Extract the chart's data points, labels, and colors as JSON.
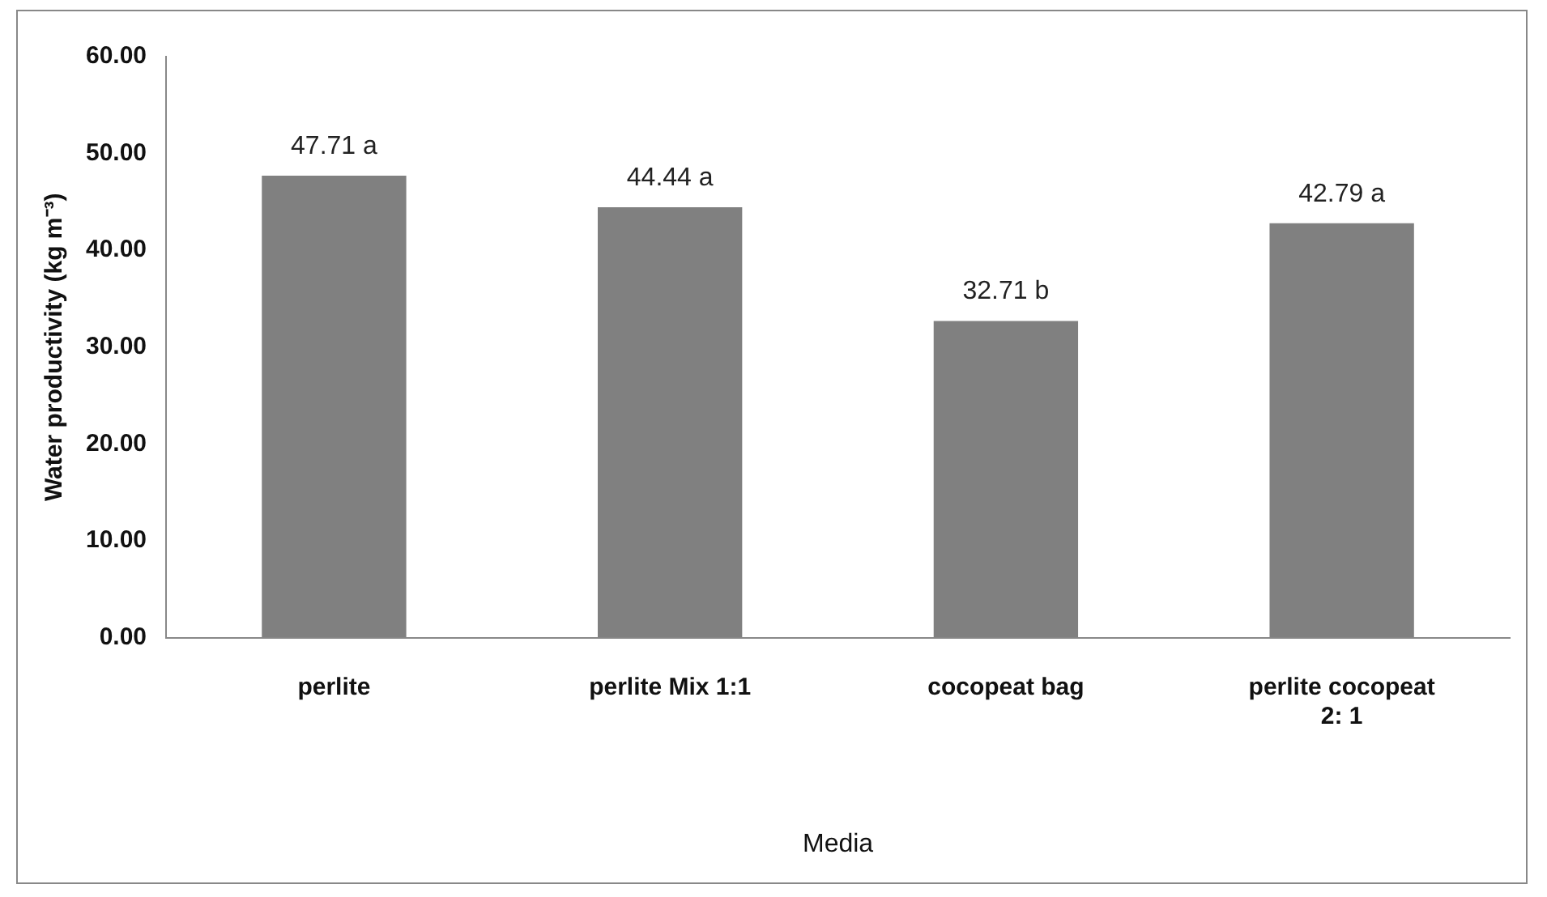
{
  "chart_data": {
    "type": "bar",
    "xlabel": "Media",
    "ylabel": "Water productivity (kg m⁻³)",
    "categories": [
      "perlite",
      "perlite Mix 1:1",
      "cocopeat bag",
      "perlite cocopeat 2: 1"
    ],
    "values": [
      47.71,
      44.44,
      32.71,
      42.79
    ],
    "color": "#808080",
    "value_labels": [
      "47.71 a",
      "44.44 a",
      "32.71 b",
      "42.79 a"
    ],
    "ylim": [
      0,
      60
    ],
    "yticks": [
      {
        "value": 0,
        "label": "0.00"
      },
      {
        "value": 10,
        "label": "10.00"
      },
      {
        "value": 20,
        "label": "20.00"
      },
      {
        "value": 30,
        "label": "30.00"
      },
      {
        "value": 40,
        "label": "40.00"
      },
      {
        "value": 50,
        "label": "50.00"
      },
      {
        "value": 60,
        "label": "60.00"
      }
    ],
    "grid": false,
    "legend": false
  }
}
